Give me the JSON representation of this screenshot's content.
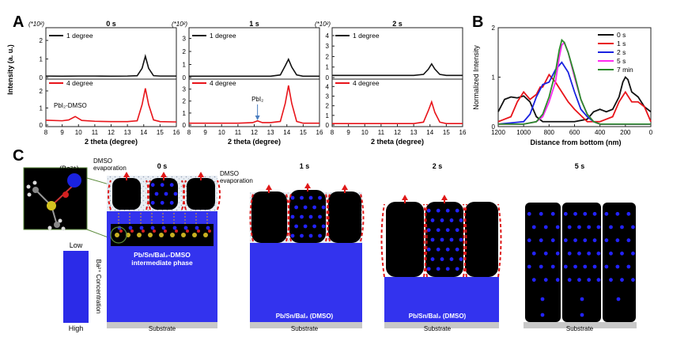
{
  "panel_labels": {
    "a": "A",
    "b": "B",
    "c": "C"
  },
  "colors": {
    "black": "#111111",
    "red": "#e8141a",
    "blue": "#1a22e0",
    "magenta": "#ff2bf0",
    "green": "#2a8a2a",
    "substrate_blue": "#3333ee",
    "dots": "#2323ff",
    "substrate_gray": "#c8c8c8"
  },
  "panel_a": {
    "x_label": "2 theta (degree)",
    "y_label": "Intensity (a. u.)",
    "scale_label": "(*10²)",
    "x_ticks": [
      "8",
      "9",
      "10",
      "11",
      "12",
      "13",
      "14",
      "15",
      "16"
    ],
    "legend_top": "1 degree",
    "legend_bottom": "4 degree",
    "subplots": [
      {
        "title": "0 s",
        "top_ticks": [
          "2",
          "1",
          "0"
        ],
        "bottom_ticks": [
          "2",
          "1",
          "0"
        ],
        "annotation": "PbI₂-DMSO"
      },
      {
        "title": "1 s",
        "top_ticks": [
          "3",
          "2",
          "1",
          "0"
        ],
        "bottom_ticks": [
          "3",
          "2",
          "1",
          "0"
        ],
        "annotation": "PbI₂"
      },
      {
        "title": "2 s",
        "top_ticks": [
          "4",
          "3",
          "2",
          "1",
          "0"
        ],
        "bottom_ticks": [
          "4",
          "3",
          "2",
          "1",
          "0"
        ],
        "annotation": ""
      }
    ]
  },
  "chart_data": [
    {
      "type": "line",
      "title": "0 s",
      "xlabel": "2 theta (degree)",
      "ylabel": "Intensity (a. u.)",
      "xlim": [
        8,
        16
      ],
      "series": [
        {
          "name": "1 degree",
          "color": "#111111",
          "ylim": [
            0,
            2.6
          ],
          "x": [
            8,
            9,
            10,
            11,
            12,
            13,
            13.6,
            13.9,
            14.1,
            14.3,
            14.6,
            15,
            16
          ],
          "y": [
            0.08,
            0.07,
            0.08,
            0.08,
            0.07,
            0.08,
            0.1,
            0.5,
            1.15,
            0.5,
            0.1,
            0.08,
            0.08
          ]
        },
        {
          "name": "4 degree",
          "color": "#e8141a",
          "ylim": [
            0,
            2.6
          ],
          "x": [
            8,
            9,
            9.4,
            9.8,
            10.2,
            11,
            12,
            13,
            13.6,
            13.9,
            14.1,
            14.3,
            14.6,
            15,
            16
          ],
          "y": [
            0.28,
            0.25,
            0.3,
            0.5,
            0.27,
            0.22,
            0.2,
            0.2,
            0.25,
            1.2,
            2.15,
            1.2,
            0.3,
            0.2,
            0.18
          ]
        }
      ]
    },
    {
      "type": "line",
      "title": "1 s",
      "xlabel": "2 theta (degree)",
      "ylabel": "Intensity (a. u.)",
      "xlim": [
        8,
        16
      ],
      "series": [
        {
          "name": "1 degree",
          "color": "#111111",
          "ylim": [
            0,
            3.7
          ],
          "x": [
            8,
            9,
            10,
            11,
            12,
            13,
            13.6,
            13.9,
            14.1,
            14.3,
            14.6,
            15,
            16
          ],
          "y": [
            0.1,
            0.1,
            0.1,
            0.1,
            0.1,
            0.1,
            0.2,
            0.9,
            1.4,
            0.8,
            0.2,
            0.1,
            0.1
          ]
        },
        {
          "name": "4 degree",
          "color": "#e8141a",
          "ylim": [
            0,
            3.7
          ],
          "x": [
            8,
            9,
            10,
            11,
            11.9,
            12.2,
            12.5,
            13,
            13.6,
            13.9,
            14.1,
            14.3,
            14.6,
            15,
            16
          ],
          "y": [
            0.15,
            0.15,
            0.15,
            0.15,
            0.2,
            0.35,
            0.2,
            0.2,
            0.3,
            1.8,
            3.3,
            1.8,
            0.3,
            0.15,
            0.15
          ]
        }
      ]
    },
    {
      "type": "line",
      "title": "2 s",
      "xlabel": "2 theta (degree)",
      "ylabel": "Intensity (a. u.)",
      "xlim": [
        8,
        16
      ],
      "series": [
        {
          "name": "1 degree",
          "color": "#111111",
          "ylim": [
            0,
            4.6
          ],
          "x": [
            8,
            9,
            10,
            11,
            12,
            13,
            13.6,
            13.9,
            14.1,
            14.3,
            14.6,
            15,
            16
          ],
          "y": [
            0.2,
            0.2,
            0.2,
            0.2,
            0.2,
            0.2,
            0.3,
            0.8,
            1.3,
            0.8,
            0.3,
            0.2,
            0.2
          ]
        },
        {
          "name": "4 degree",
          "color": "#e8141a",
          "ylim": [
            0,
            4.6
          ],
          "x": [
            8,
            9,
            10,
            11,
            12,
            13,
            13.6,
            13.9,
            14.1,
            14.3,
            14.6,
            15,
            16
          ],
          "y": [
            0.15,
            0.15,
            0.15,
            0.15,
            0.15,
            0.15,
            0.3,
            1.5,
            2.4,
            1.3,
            0.3,
            0.15,
            0.15
          ]
        }
      ]
    },
    {
      "type": "line",
      "title": "",
      "xlabel": "Distance from bottom (nm)",
      "ylabel": "Normalized Intensity",
      "xlim": [
        1200,
        0
      ],
      "ylim": [
        0,
        2
      ],
      "x_ticks": [
        "1200",
        "1000",
        "800",
        "600",
        "400",
        "200",
        "0"
      ],
      "y_ticks": [
        "2",
        "1",
        "0"
      ],
      "series": [
        {
          "name": "0 s",
          "color": "#111111",
          "x": [
            1200,
            1150,
            1100,
            1050,
            1000,
            950,
            900,
            850,
            800,
            700,
            600,
            500,
            450,
            400,
            350,
            300,
            250,
            220,
            200,
            180,
            150,
            100,
            50,
            0
          ],
          "y": [
            0.3,
            0.55,
            0.6,
            0.58,
            0.62,
            0.5,
            0.2,
            0.1,
            0.1,
            0.1,
            0.1,
            0.15,
            0.3,
            0.35,
            0.3,
            0.35,
            0.6,
            0.9,
            1.0,
            0.95,
            0.7,
            0.6,
            0.4,
            0.3
          ]
        },
        {
          "name": "1 s",
          "color": "#e8141a",
          "x": [
            1200,
            1100,
            1050,
            1000,
            950,
            900,
            870,
            850,
            800,
            750,
            700,
            650,
            600,
            500,
            400,
            300,
            250,
            200,
            150,
            100,
            50,
            0
          ],
          "y": [
            0.1,
            0.2,
            0.5,
            0.7,
            0.55,
            0.65,
            0.8,
            0.8,
            1.05,
            0.9,
            0.7,
            0.5,
            0.35,
            0.1,
            0.1,
            0.2,
            0.5,
            0.7,
            0.5,
            0.5,
            0.4,
            0.1
          ]
        },
        {
          "name": "2 s",
          "color": "#1a22e0",
          "x": [
            1200,
            1000,
            950,
            900,
            850,
            800,
            750,
            700,
            650,
            600,
            550,
            500,
            450,
            400,
            300,
            200,
            100,
            0
          ],
          "y": [
            0.05,
            0.1,
            0.25,
            0.6,
            0.85,
            0.9,
            1.15,
            1.3,
            1.1,
            0.7,
            0.35,
            0.2,
            0.1,
            0.05,
            0.05,
            0.05,
            0.05,
            0.05
          ]
        },
        {
          "name": "5 s",
          "color": "#ff2bf0",
          "x": [
            1200,
            1000,
            900,
            850,
            800,
            750,
            720,
            700,
            680,
            650,
            600,
            550,
            500,
            450,
            400,
            300,
            200,
            100,
            0
          ],
          "y": [
            0.05,
            0.05,
            0.1,
            0.2,
            0.5,
            0.9,
            1.4,
            1.65,
            1.7,
            1.5,
            1.0,
            0.55,
            0.25,
            0.1,
            0.05,
            0.05,
            0.05,
            0.05,
            0.05
          ]
        },
        {
          "name": "7 min",
          "color": "#2a8a2a",
          "x": [
            1200,
            1000,
            900,
            850,
            800,
            750,
            720,
            700,
            680,
            650,
            600,
            550,
            500,
            450,
            400,
            300,
            200,
            100,
            0
          ],
          "y": [
            0.05,
            0.05,
            0.1,
            0.25,
            0.6,
            1.1,
            1.55,
            1.75,
            1.7,
            1.5,
            1.05,
            0.55,
            0.25,
            0.1,
            0.05,
            0.05,
            0.05,
            0.05,
            0.05
          ]
        }
      ]
    }
  ],
  "panel_b": {
    "x_label": "Distance from bottom (nm)",
    "y_label": "Normalized Intensity"
  },
  "panel_c": {
    "stage_labels": [
      "0 s",
      "1 s",
      "2 s",
      "5 s"
    ],
    "dmso_left": "DMSO evaporation",
    "dmso_left_1": "DMSO",
    "dmso_left_2": "evaporation",
    "dmso_right_1": "DMSO",
    "dmso_right_2": "evaporation",
    "ba_label": "(Ba²⁺)",
    "concentration_label": "Ba²⁺ Concentration",
    "low": "Low",
    "high": "High",
    "intermediate_1": "Pb/Sn/BaI₂-DMSO",
    "intermediate_2": "intermediate phase",
    "layer_label": "Pb/Sn/BaI₂ (DMSO)",
    "substrate": "Substrate"
  }
}
